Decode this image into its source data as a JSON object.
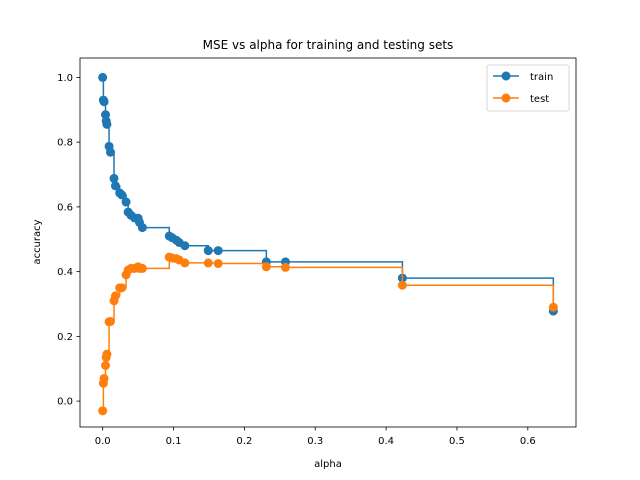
{
  "chart_data": {
    "type": "line",
    "title": "MSE vs alpha for training and testing sets",
    "xlabel": "alpha",
    "ylabel": "accuracy",
    "xlim": [
      -0.032,
      0.668
    ],
    "ylim": [
      -0.08,
      1.06
    ],
    "xticks": [
      "0.0",
      "0.1",
      "0.2",
      "0.3",
      "0.4",
      "0.5",
      "0.6"
    ],
    "yticks": [
      "0.0",
      "0.2",
      "0.4",
      "0.6",
      "0.8",
      "1.0"
    ],
    "legend_position": "top-right",
    "drawstyle": "steps-post",
    "x": [
      0.0,
      0.001,
      0.002,
      0.004,
      0.005,
      0.006,
      0.009,
      0.011,
      0.016,
      0.018,
      0.024,
      0.027,
      0.033,
      0.036,
      0.04,
      0.045,
      0.05,
      0.052,
      0.056,
      0.094,
      0.098,
      0.104,
      0.108,
      0.116,
      0.149,
      0.163,
      0.231,
      0.258,
      0.423,
      0.636
    ],
    "series": [
      {
        "name": "train",
        "color": "#1f77b4",
        "values": [
          1.0,
          0.93,
          0.925,
          0.885,
          0.865,
          0.855,
          0.787,
          0.769,
          0.688,
          0.665,
          0.643,
          0.637,
          0.615,
          0.584,
          0.574,
          0.566,
          0.565,
          0.552,
          0.536,
          0.51,
          0.505,
          0.497,
          0.49,
          0.48,
          0.465,
          0.465,
          0.43,
          0.43,
          0.38,
          0.278
        ]
      },
      {
        "name": "test",
        "color": "#ff7f0e",
        "values": [
          -0.03,
          0.055,
          0.07,
          0.11,
          0.135,
          0.145,
          0.245,
          0.246,
          0.31,
          0.325,
          0.35,
          0.35,
          0.39,
          0.405,
          0.41,
          0.41,
          0.415,
          0.41,
          0.41,
          0.445,
          0.442,
          0.44,
          0.436,
          0.427,
          0.427,
          0.425,
          0.415,
          0.413,
          0.358,
          0.29
        ]
      }
    ]
  }
}
